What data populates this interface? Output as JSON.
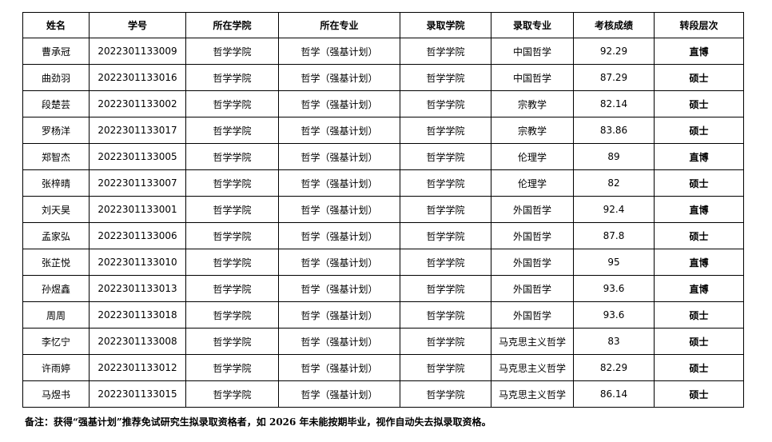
{
  "headers": [
    "姓名",
    "学号",
    "所在学院",
    "所在专业",
    "录取学院",
    "录取专业",
    "考核成绩",
    "转段层次"
  ],
  "rows": [
    [
      "曹承冠",
      "2022301133009",
      "哲学学院",
      "哲学（强基计划）",
      "哲学学院",
      "中国哲学",
      "92.29",
      "直博"
    ],
    [
      "曲劲羽",
      "2022301133016",
      "哲学学院",
      "哲学（强基计划）",
      "哲学学院",
      "中国哲学",
      "87.29",
      "硕士"
    ],
    [
      "段楚芸",
      "2022301133002",
      "哲学学院",
      "哲学（强基计划）",
      "哲学学院",
      "宗教学",
      "82.14",
      "硕士"
    ],
    [
      "罗杨洋",
      "2022301133017",
      "哲学学院",
      "哲学（强基计划）",
      "哲学学院",
      "宗教学",
      "83.86",
      "硕士"
    ],
    [
      "郑智杰",
      "2022301133005",
      "哲学学院",
      "哲学（强基计划）",
      "哲学学院",
      "伦理学",
      "89",
      "直博"
    ],
    [
      "张梓晴",
      "2022301133007",
      "哲学学院",
      "哲学（强基计划）",
      "哲学学院",
      "伦理学",
      "82",
      "硕士"
    ],
    [
      "刘天昊",
      "2022301133001",
      "哲学学院",
      "哲学（强基计划）",
      "哲学学院",
      "外国哲学",
      "92.4",
      "直博"
    ],
    [
      "孟家弘",
      "2022301133006",
      "哲学学院",
      "哲学（强基计划）",
      "哲学学院",
      "外国哲学",
      "87.8",
      "硕士"
    ],
    [
      "张芷悦",
      "2022301133010",
      "哲学学院",
      "哲学（强基计划）",
      "哲学学院",
      "外国哲学",
      "95",
      "直博"
    ],
    [
      "孙煜鑫",
      "2022301133013",
      "哲学学院",
      "哲学（强基计划）",
      "哲学学院",
      "外国哲学",
      "93.6",
      "直博"
    ],
    [
      "周周",
      "2022301133018",
      "哲学学院",
      "哲学（强基计划）",
      "哲学学院",
      "外国哲学",
      "93.6",
      "硕士"
    ],
    [
      "李忆宁",
      "2022301133008",
      "哲学学院",
      "哲学（强基计划）",
      "哲学学院",
      "马克思主义哲学",
      "83",
      "硕士"
    ],
    [
      "许雨婷",
      "2022301133012",
      "哲学学院",
      "哲学（强基计划）",
      "哲学学院",
      "马克思主义哲学",
      "82.29",
      "硕士"
    ],
    [
      "马煜书",
      "2022301133015",
      "哲学学院",
      "哲学（强基计划）",
      "哲学学院",
      "马克思主义哲学",
      "86.14",
      "硕士"
    ]
  ],
  "note": "备注：获得“强基计划”推荐免试研究生拟录取资格者，如 2026 年未能按期毕业，视作自动失去拟录取资格。"
}
